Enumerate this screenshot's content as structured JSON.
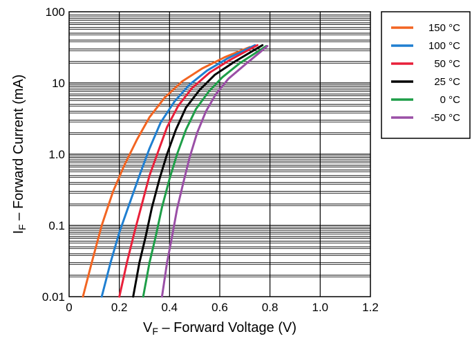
{
  "chart_data": {
    "type": "line",
    "title": "",
    "xlabel": {
      "main": "V",
      "sub": "F",
      "rest": " – Forward Voltage (V)"
    },
    "ylabel": {
      "main": "I",
      "sub": "F",
      "rest": " – Forward Current (mA)"
    },
    "xlim": [
      0,
      1.2
    ],
    "ylim": [
      0.01,
      100
    ],
    "yscale": "log",
    "grid": true,
    "legend_position": "top-right",
    "x_ticks": [
      {
        "value": 0,
        "label": "0"
      },
      {
        "value": 0.2,
        "label": "0.2"
      },
      {
        "value": 0.4,
        "label": "0.4"
      },
      {
        "value": 0.6,
        "label": "0.6"
      },
      {
        "value": 0.8,
        "label": "0.8"
      },
      {
        "value": 1.0,
        "label": "1.0"
      },
      {
        "value": 1.2,
        "label": "1.2"
      }
    ],
    "y_ticks": [
      {
        "value": 0.01,
        "label": "0.01"
      },
      {
        "value": 0.1,
        "label": "0.1"
      },
      {
        "value": 1,
        "label": "1.0"
      },
      {
        "value": 10,
        "label": "10"
      },
      {
        "value": 100,
        "label": "100"
      }
    ],
    "series": [
      {
        "name": "150 °C",
        "color": "#f26522",
        "x": [
          0.055,
          0.09,
          0.13,
          0.175,
          0.22,
          0.27,
          0.32,
          0.38,
          0.45,
          0.53,
          0.62,
          0.72
        ],
        "y": [
          0.01,
          0.03,
          0.1,
          0.3,
          0.7,
          1.6,
          3.3,
          6.2,
          10.5,
          16,
          23,
          32
        ]
      },
      {
        "name": "100 °C",
        "color": "#1f7fd1",
        "x": [
          0.13,
          0.165,
          0.2,
          0.24,
          0.28,
          0.32,
          0.365,
          0.42,
          0.48,
          0.55,
          0.63,
          0.74
        ],
        "y": [
          0.01,
          0.03,
          0.08,
          0.2,
          0.5,
          1.2,
          2.8,
          5.5,
          9.5,
          15,
          22,
          34
        ]
      },
      {
        "name": "50 °C",
        "color": "#e8203a",
        "x": [
          0.2,
          0.23,
          0.26,
          0.29,
          0.32,
          0.355,
          0.39,
          0.435,
          0.49,
          0.56,
          0.64,
          0.75
        ],
        "y": [
          0.01,
          0.03,
          0.08,
          0.2,
          0.5,
          1.1,
          2.4,
          4.8,
          8.5,
          14,
          21,
          34
        ]
      },
      {
        "name": "25 °C",
        "color": "#000000",
        "x": [
          0.255,
          0.28,
          0.305,
          0.33,
          0.36,
          0.39,
          0.425,
          0.465,
          0.52,
          0.58,
          0.66,
          0.77
        ],
        "y": [
          0.01,
          0.03,
          0.07,
          0.18,
          0.45,
          1.0,
          2.2,
          4.5,
          8.0,
          13,
          20,
          34
        ]
      },
      {
        "name": "0 °C",
        "color": "#1e9e48",
        "x": [
          0.295,
          0.32,
          0.345,
          0.37,
          0.4,
          0.43,
          0.465,
          0.505,
          0.555,
          0.61,
          0.68,
          0.785
        ],
        "y": [
          0.01,
          0.03,
          0.07,
          0.18,
          0.45,
          1.0,
          2.2,
          4.3,
          7.5,
          12,
          19,
          33
        ]
      },
      {
        "name": "-50 °C",
        "color": "#9a4fa6",
        "x": [
          0.37,
          0.39,
          0.41,
          0.43,
          0.455,
          0.48,
          0.51,
          0.545,
          0.585,
          0.635,
          0.7,
          0.79
        ],
        "y": [
          0.01,
          0.03,
          0.07,
          0.17,
          0.4,
          0.9,
          2.0,
          4.0,
          7.0,
          11.5,
          18,
          33
        ]
      }
    ]
  }
}
